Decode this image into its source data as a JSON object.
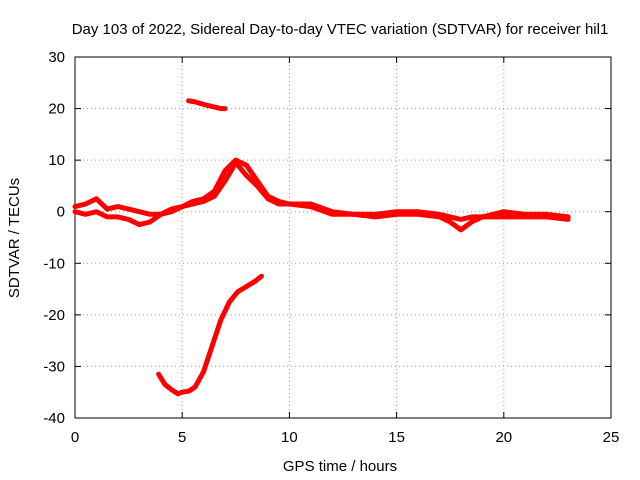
{
  "chart_data": {
    "type": "line",
    "title": "Day 103 of 2022, Sidereal Day-to-day VTEC variation (SDTVAR) for receiver hil1",
    "xlabel": "GPS time / hours",
    "ylabel": "SDTVAR / TECUs",
    "xlim": [
      0,
      25
    ],
    "ylim": [
      -40,
      30
    ],
    "xticks": [
      0,
      5,
      10,
      15,
      20,
      25
    ],
    "yticks": [
      -40,
      -30,
      -20,
      -10,
      0,
      10,
      20,
      30
    ],
    "xtick_labels": [
      "0",
      "5",
      "10",
      "15",
      "20",
      "25"
    ],
    "ytick_labels": [
      "-40",
      "-30",
      "-20",
      "-10",
      "0",
      "10",
      "20",
      "30"
    ],
    "grid": true,
    "legend": "none",
    "series_color": "#ff0000",
    "series": [
      {
        "name": "main-band-a",
        "x": [
          0,
          0.5,
          1,
          1.5,
          2,
          2.5,
          3,
          3.5,
          4,
          4.5,
          5,
          5.5,
          6,
          6.5,
          7,
          7.5,
          8,
          8.5,
          9,
          9.5,
          10,
          11,
          12,
          13,
          14,
          15,
          16,
          17,
          17.5,
          18,
          18.5,
          19,
          20,
          21,
          22,
          23
        ],
        "y": [
          1,
          1.5,
          2.5,
          0.5,
          1,
          0.5,
          0,
          -0.5,
          -0.5,
          0,
          1,
          2,
          2.5,
          4,
          8,
          10,
          9,
          6,
          3,
          2,
          1.5,
          1.5,
          0,
          -0.5,
          -0.5,
          0,
          0,
          -0.5,
          -1,
          -1.5,
          -1,
          -1,
          0,
          -0.5,
          -0.5,
          -1
        ]
      },
      {
        "name": "main-band-b",
        "x": [
          0,
          0.5,
          1,
          1.5,
          2,
          2.5,
          3,
          3.5,
          4,
          4.5,
          5,
          5.5,
          6,
          6.5,
          7,
          7.5,
          8,
          8.5,
          9,
          9.5,
          10,
          11,
          12,
          13,
          14,
          15,
          16,
          17,
          17.5,
          18,
          18.5,
          19,
          20,
          21,
          22,
          23
        ],
        "y": [
          0,
          -0.5,
          0,
          -1,
          -1,
          -1.5,
          -2.5,
          -2,
          -0.5,
          0.5,
          1,
          1.5,
          2,
          3,
          6,
          9.5,
          7,
          5,
          2.5,
          1.5,
          1.5,
          1,
          -0.5,
          -0.5,
          -1,
          -0.5,
          -0.5,
          -1,
          -2,
          -3.5,
          -2,
          -1,
          -1,
          -1,
          -1,
          -1.5
        ]
      },
      {
        "name": "upper-segment",
        "x": [
          5.3,
          5.6,
          6,
          6.4,
          6.8,
          7.0
        ],
        "y": [
          21.5,
          21.3,
          20.8,
          20.4,
          20,
          20
        ]
      },
      {
        "name": "lower-segment",
        "x": [
          3.9,
          4.2,
          4.5,
          4.8,
          5.0,
          5.3,
          5.6,
          6.0,
          6.4,
          6.8,
          7.2,
          7.6,
          8.0,
          8.4,
          8.7
        ],
        "y": [
          -31.5,
          -33.5,
          -34.5,
          -35.3,
          -35,
          -34.8,
          -34,
          -31,
          -26,
          -21,
          -17.5,
          -15.5,
          -14.5,
          -13.5,
          -12.5
        ]
      }
    ]
  }
}
